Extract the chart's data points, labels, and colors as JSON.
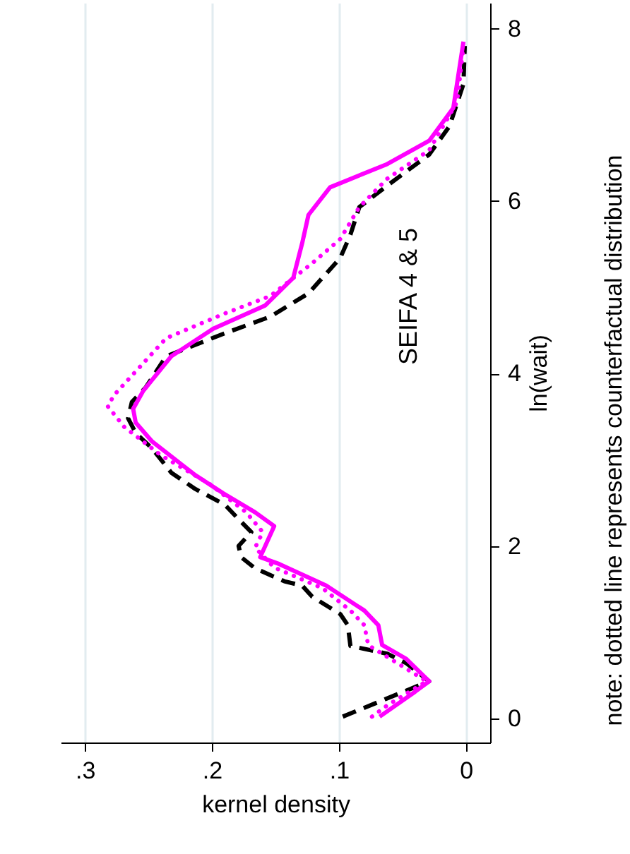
{
  "chart_data": {
    "type": "line",
    "title": "SEIFA 4 & 5",
    "xlabel": "kernel density",
    "ylabel": "ln(wait)",
    "annotations": [
      "note: dotted line represents counterfactual distribution"
    ],
    "xlim": [
      0.319,
      -0.019
    ],
    "xticks": [
      {
        "value": 0.3,
        "label": ".3"
      },
      {
        "value": 0.2,
        "label": ".2"
      },
      {
        "value": 0.1,
        "label": ".1"
      },
      0
    ],
    "ylim": [
      -0.28,
      8.3
    ],
    "yticks": [
      0,
      2,
      4,
      6,
      8
    ],
    "grid": "x",
    "series": [
      {
        "color": "#000000",
        "line_style": "dashed",
        "x": [
          0.097,
          0.054,
          0.029,
          0.047,
          0.062,
          0.091,
          0.093,
          0.099,
          0.121,
          0.129,
          0.143,
          0.166,
          0.177,
          0.179,
          0.169,
          0.179,
          0.19,
          0.213,
          0.232,
          0.247,
          0.26,
          0.266,
          0.263,
          0.252,
          0.236,
          0.191,
          0.154,
          0.124,
          0.099,
          0.091,
          0.084,
          0.062,
          0.029,
          0.013,
          0.002,
          0.001
        ],
        "values": [
          0.02,
          0.28,
          0.43,
          0.64,
          0.75,
          0.84,
          1.08,
          1.21,
          1.41,
          1.54,
          1.59,
          1.74,
          1.87,
          2.0,
          2.16,
          2.31,
          2.48,
          2.66,
          2.85,
          3.13,
          3.31,
          3.48,
          3.67,
          3.84,
          4.2,
          4.46,
          4.66,
          4.93,
          5.34,
          5.61,
          5.93,
          6.18,
          6.54,
          6.87,
          7.36,
          7.8
        ]
      },
      {
        "color": "#ff00ff",
        "line_style": "solid",
        "x": [
          0.068,
          0.04,
          0.029,
          0.047,
          0.066,
          0.069,
          0.08,
          0.11,
          0.147,
          0.162,
          0.151,
          0.166,
          0.191,
          0.213,
          0.247,
          0.26,
          0.262,
          0.254,
          0.232,
          0.199,
          0.158,
          0.136,
          0.129,
          0.124,
          0.107,
          0.062,
          0.029,
          0.01,
          0.002
        ],
        "values": [
          0.02,
          0.31,
          0.43,
          0.69,
          0.85,
          1.08,
          1.25,
          1.54,
          1.79,
          1.87,
          2.23,
          2.39,
          2.61,
          2.82,
          3.21,
          3.43,
          3.59,
          3.8,
          4.2,
          4.52,
          4.79,
          5.11,
          5.51,
          5.84,
          6.16,
          6.43,
          6.7,
          7.08,
          7.85
        ]
      },
      {
        "color": "#ff00ff",
        "line_style": "dotted",
        "x": [
          0.074,
          0.062,
          0.031,
          0.054,
          0.077,
          0.08,
          0.091,
          0.113,
          0.151,
          0.166,
          0.16,
          0.173,
          0.202,
          0.24,
          0.269,
          0.282,
          0.277,
          0.236,
          0.191,
          0.154,
          0.121,
          0.099,
          0.084,
          0.062,
          0.029,
          0.007,
          0.002
        ],
        "values": [
          0.02,
          0.15,
          0.43,
          0.64,
          0.85,
          1.08,
          1.25,
          1.51,
          1.75,
          1.98,
          2.16,
          2.39,
          2.72,
          3.05,
          3.38,
          3.62,
          3.75,
          4.41,
          4.69,
          4.9,
          5.28,
          5.56,
          5.93,
          6.26,
          6.59,
          7.15,
          7.8
        ]
      }
    ]
  }
}
